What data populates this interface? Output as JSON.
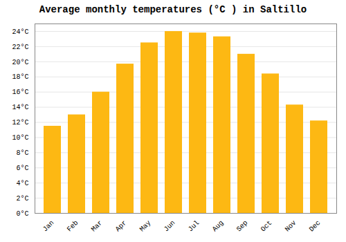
{
  "chart_data": {
    "type": "bar",
    "title": "Average monthly temperatures (°C ) in Saltillo",
    "categories": [
      "Jan",
      "Feb",
      "Mar",
      "Apr",
      "May",
      "Jun",
      "Jul",
      "Aug",
      "Sep",
      "Oct",
      "Nov",
      "Dec"
    ],
    "values": [
      11.5,
      13.0,
      16.0,
      19.7,
      22.5,
      24.0,
      23.8,
      23.3,
      21.0,
      18.4,
      14.3,
      12.2
    ],
    "color": "#FDB813",
    "ylim": [
      0,
      25
    ],
    "yticks": [
      {
        "value": 0,
        "label": "0°C"
      },
      {
        "value": 2,
        "label": "2°C"
      },
      {
        "value": 4,
        "label": "4°C"
      },
      {
        "value": 6,
        "label": "6°C"
      },
      {
        "value": 8,
        "label": "8°C"
      },
      {
        "value": 10,
        "label": "10°C"
      },
      {
        "value": 12,
        "label": "12°C"
      },
      {
        "value": 14,
        "label": "14°C"
      },
      {
        "value": 16,
        "label": "16°C"
      },
      {
        "value": 18,
        "label": "18°C"
      },
      {
        "value": 20,
        "label": "20°C"
      },
      {
        "value": 22,
        "label": "22°C"
      },
      {
        "value": 24,
        "label": "24°C"
      }
    ],
    "grid": true
  }
}
